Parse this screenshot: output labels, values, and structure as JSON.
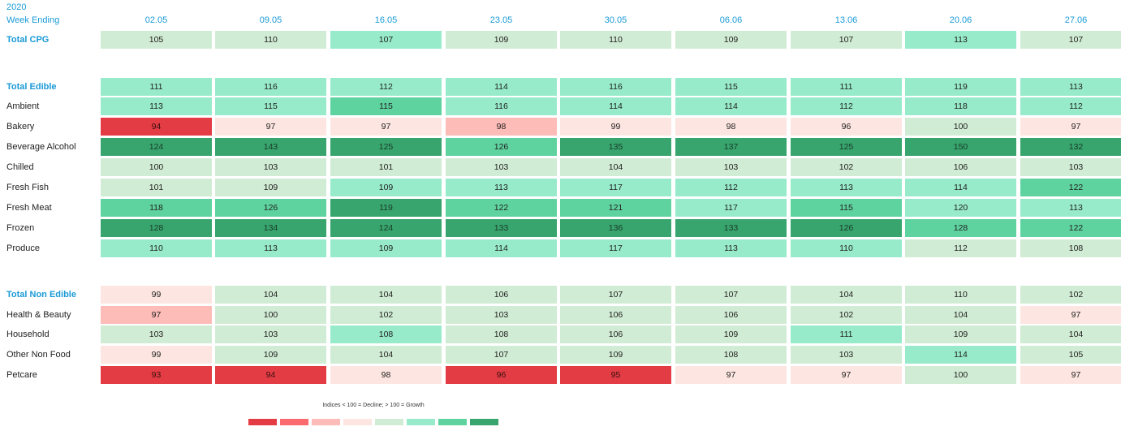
{
  "header": {
    "year": "2020",
    "week_ending": "Week Ending"
  },
  "note": "Indices < 100 = Decline; > 100 = Growth",
  "colors": {
    "red_dark": "#e43c44",
    "red_mid": "#fb6a6e",
    "red_light": "#fdbcb8",
    "red_pale": "#fde6e1",
    "green_pale": "#d1ecd4",
    "green_light": "#97ebcb",
    "green_mid": "#5ed39f",
    "green_dark": "#37a56d"
  },
  "legend": [
    "#e43c44",
    "#fb6a6e",
    "#fdbcb8",
    "#fde6e1",
    "#d1ecd4",
    "#97ebcb",
    "#5ed39f",
    "#37a56d"
  ],
  "chart_data": {
    "type": "heatmap",
    "columns": [
      "02.05",
      "09.05",
      "16.05",
      "23.05",
      "30.05",
      "06.06",
      "13.06",
      "20.06",
      "27.06"
    ],
    "rows": [
      {
        "label": "Total CPG",
        "bold": true,
        "values": [
          105,
          110,
          107,
          109,
          110,
          109,
          107,
          113,
          107
        ]
      },
      {
        "label": "Total Edible",
        "bold": true,
        "values": [
          111,
          116,
          112,
          114,
          116,
          115,
          111,
          119,
          113
        ]
      },
      {
        "label": "Ambient",
        "values": [
          113,
          115,
          115,
          116,
          114,
          114,
          112,
          118,
          112
        ]
      },
      {
        "label": "Bakery",
        "values": [
          94,
          97,
          97,
          98,
          99,
          98,
          96,
          100,
          97
        ]
      },
      {
        "label": "Beverage Alcohol",
        "values": [
          124,
          143,
          125,
          126,
          135,
          137,
          125,
          150,
          132
        ]
      },
      {
        "label": "Chilled",
        "values": [
          100,
          103,
          101,
          103,
          104,
          103,
          102,
          106,
          103
        ]
      },
      {
        "label": "Fresh Fish",
        "values": [
          101,
          109,
          109,
          113,
          117,
          112,
          113,
          114,
          122
        ]
      },
      {
        "label": "Fresh Meat",
        "values": [
          118,
          126,
          119,
          122,
          121,
          117,
          115,
          120,
          113
        ]
      },
      {
        "label": "Frozen",
        "values": [
          128,
          134,
          124,
          133,
          136,
          133,
          126,
          128,
          122
        ]
      },
      {
        "label": "Produce",
        "values": [
          110,
          113,
          109,
          114,
          117,
          113,
          110,
          112,
          108
        ]
      },
      {
        "label": "Total Non Edible",
        "bold": true,
        "values": [
          99,
          104,
          104,
          106,
          107,
          107,
          104,
          110,
          102
        ]
      },
      {
        "label": "Health & Beauty",
        "values": [
          97,
          100,
          102,
          103,
          106,
          106,
          102,
          104,
          97
        ]
      },
      {
        "label": "Household",
        "values": [
          103,
          103,
          108,
          108,
          106,
          109,
          111,
          109,
          104
        ]
      },
      {
        "label": "Other Non Food",
        "values": [
          99,
          109,
          104,
          107,
          109,
          108,
          103,
          114,
          105
        ]
      },
      {
        "label": "Petcare",
        "values": [
          93,
          94,
          98,
          96,
          95,
          97,
          97,
          100,
          97
        ]
      }
    ],
    "cell_colors": [
      [
        "green_pale",
        "green_pale",
        "green_light",
        "green_pale",
        "green_pale",
        "green_pale",
        "green_pale",
        "green_light",
        "green_pale"
      ],
      [
        "green_light",
        "green_light",
        "green_light",
        "green_light",
        "green_light",
        "green_light",
        "green_light",
        "green_light",
        "green_light"
      ],
      [
        "green_light",
        "green_light",
        "green_mid",
        "green_light",
        "green_light",
        "green_light",
        "green_light",
        "green_light",
        "green_light"
      ],
      [
        "red_dark",
        "red_pale",
        "red_pale",
        "red_light",
        "red_pale",
        "red_pale",
        "red_pale",
        "green_pale",
        "red_pale"
      ],
      [
        "green_dark",
        "green_dark",
        "green_dark",
        "green_mid",
        "green_dark",
        "green_dark",
        "green_dark",
        "green_dark",
        "green_dark"
      ],
      [
        "green_pale",
        "green_pale",
        "green_pale",
        "green_pale",
        "green_pale",
        "green_pale",
        "green_pale",
        "green_pale",
        "green_pale"
      ],
      [
        "green_pale",
        "green_pale",
        "green_light",
        "green_light",
        "green_light",
        "green_light",
        "green_light",
        "green_light",
        "green_mid"
      ],
      [
        "green_mid",
        "green_mid",
        "green_dark",
        "green_mid",
        "green_mid",
        "green_light",
        "green_mid",
        "green_light",
        "green_light"
      ],
      [
        "green_dark",
        "green_dark",
        "green_dark",
        "green_dark",
        "green_dark",
        "green_dark",
        "green_dark",
        "green_mid",
        "green_mid"
      ],
      [
        "green_light",
        "green_light",
        "green_light",
        "green_light",
        "green_light",
        "green_light",
        "green_light",
        "green_pale",
        "green_pale"
      ],
      [
        "red_pale",
        "green_pale",
        "green_pale",
        "green_pale",
        "green_pale",
        "green_pale",
        "green_pale",
        "green_pale",
        "green_pale"
      ],
      [
        "red_light",
        "green_pale",
        "green_pale",
        "green_pale",
        "green_pale",
        "green_pale",
        "green_pale",
        "green_pale",
        "red_pale"
      ],
      [
        "green_pale",
        "green_pale",
        "green_light",
        "green_pale",
        "green_pale",
        "green_pale",
        "green_light",
        "green_pale",
        "green_pale"
      ],
      [
        "red_pale",
        "green_pale",
        "green_pale",
        "green_pale",
        "green_pale",
        "green_pale",
        "green_pale",
        "green_light",
        "green_pale"
      ],
      [
        "red_dark",
        "red_dark",
        "red_pale",
        "red_dark",
        "red_dark",
        "red_pale",
        "red_pale",
        "green_pale",
        "red_pale"
      ]
    ]
  }
}
